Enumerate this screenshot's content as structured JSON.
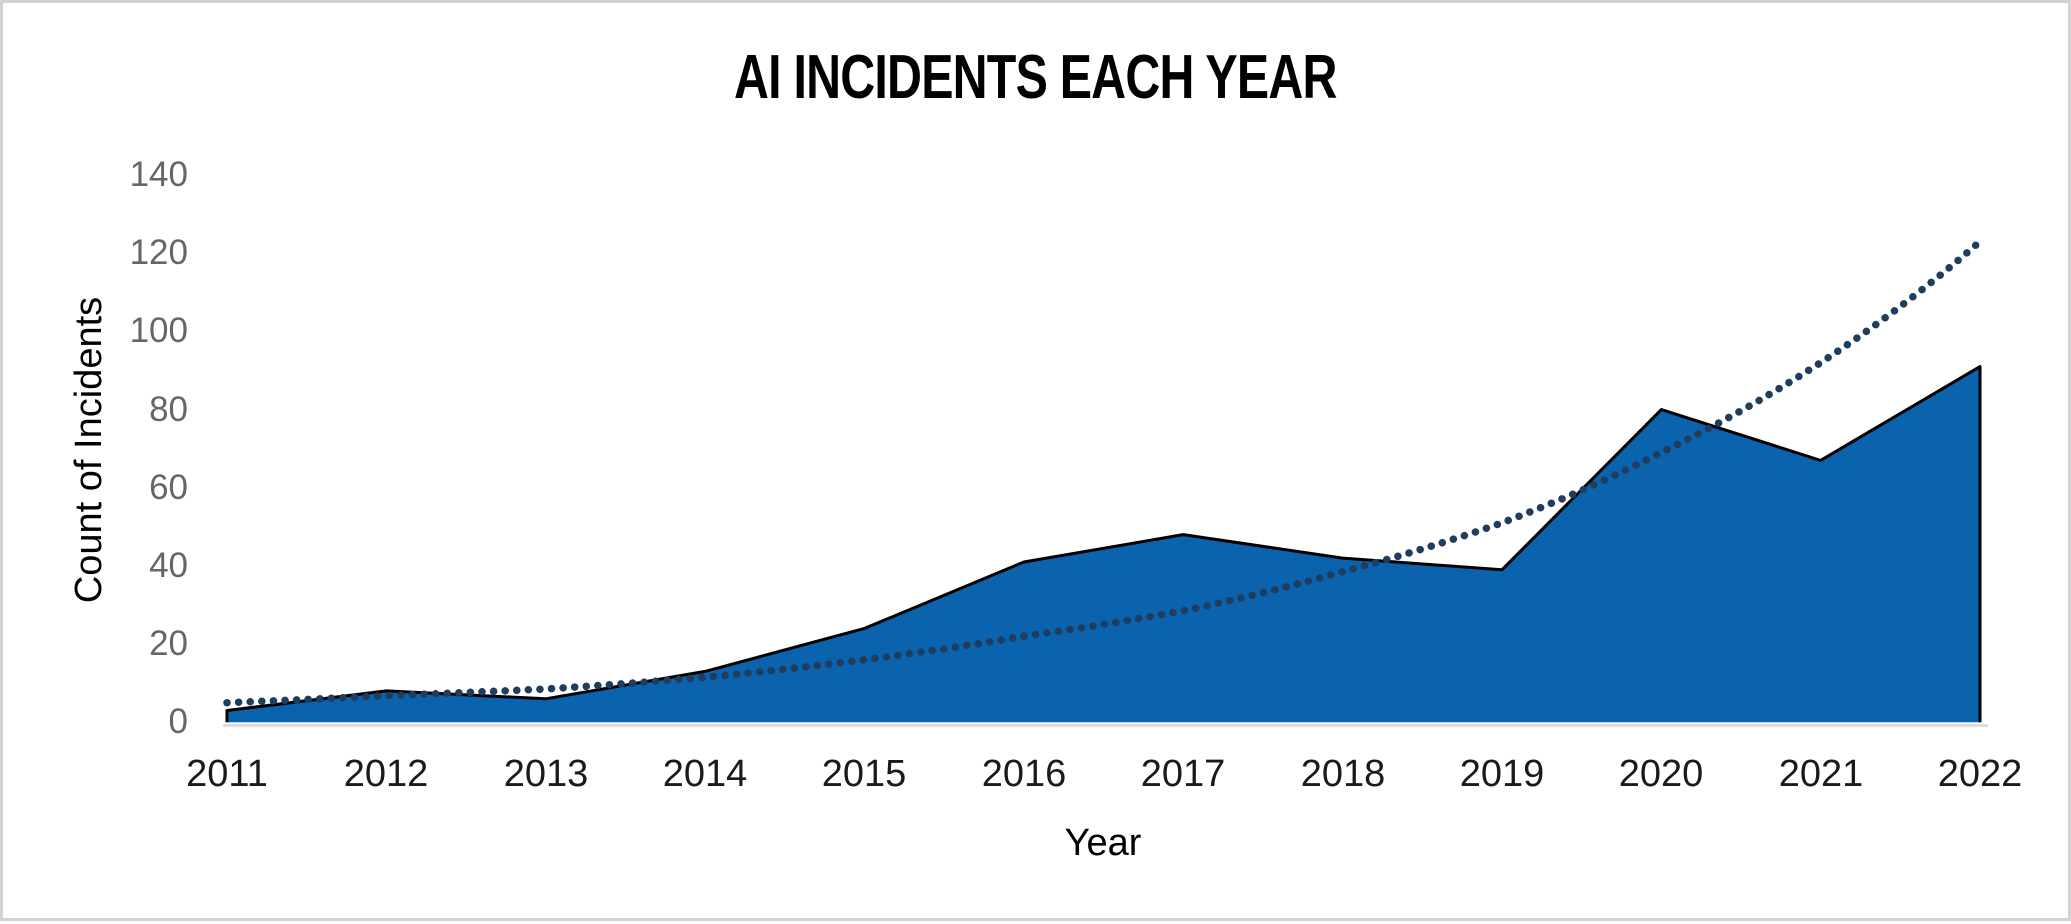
{
  "window": {
    "background_color": "#ffffff",
    "border_color": "#d2d2d2"
  },
  "chart_data": {
    "type": "area",
    "title": "AI INCIDENTS EACH YEAR",
    "xlabel": "Year",
    "ylabel": "Count of Incidents",
    "categories": [
      "2011",
      "2012",
      "2013",
      "2014",
      "2015",
      "2016",
      "2017",
      "2018",
      "2019",
      "2020",
      "2021",
      "2022"
    ],
    "series": [
      {
        "name": "Count of Incidents",
        "type": "area",
        "values": [
          3,
          8,
          6,
          13,
          24,
          41,
          48,
          42,
          39,
          80,
          67,
          91
        ]
      },
      {
        "name": "Exponential trendline",
        "type": "dotted-line",
        "values": [
          5,
          6.8,
          8.5,
          11.5,
          16,
          22,
          28.5,
          38.5,
          51,
          69,
          92,
          123
        ]
      }
    ],
    "ylim": [
      0,
      140
    ],
    "ytick_step": 20,
    "yticks": [
      0,
      20,
      40,
      60,
      80,
      100,
      120,
      140
    ],
    "grid": false,
    "legend_position": "none",
    "colors": {
      "area_fill": "#0B63AD",
      "area_outline": "#000000",
      "trendline": "#1E3D5F",
      "axis_line": "#D9D9D9",
      "ytick_text": "#666666",
      "xtick_text": "#1A1A1A",
      "title_text": "#000000"
    }
  }
}
